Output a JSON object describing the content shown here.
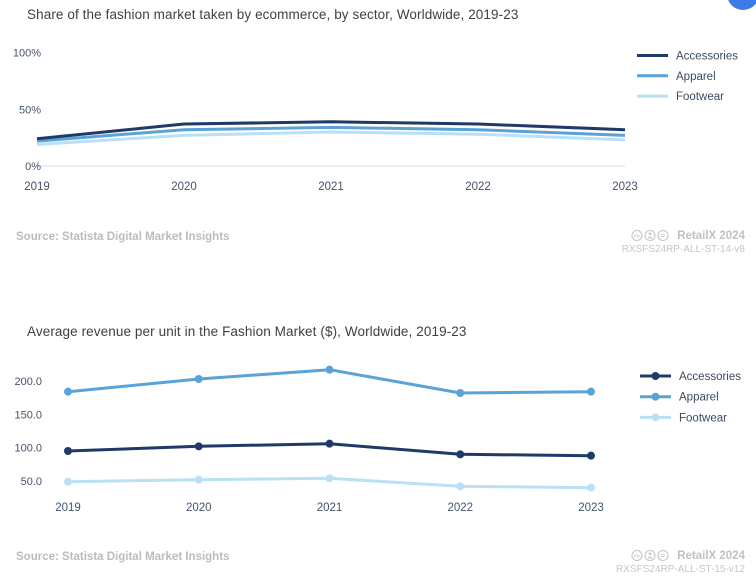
{
  "page": {
    "background": "#ffffff",
    "floating_button_color": "#3b7be6",
    "axis_label_color": "#44546a",
    "legend_text_color": "#3c4a61",
    "gridline_color": "#e9edf6"
  },
  "chart_data": [
    {
      "type": "line",
      "title": "Share of the fashion market taken by ecommerce, by sector, Worldwide, 2019-23",
      "categories": [
        "2019",
        "2020",
        "2021",
        "2022",
        "2023"
      ],
      "series": [
        {
          "name": "Accessories",
          "color": "#1e3a66",
          "values": [
            24,
            37,
            39,
            37,
            32
          ]
        },
        {
          "name": "Apparel",
          "color": "#5aa3d8",
          "values": [
            22,
            32,
            34,
            32,
            27
          ]
        },
        {
          "name": "Footwear",
          "color": "#b9e0f6",
          "values": [
            19,
            27,
            30,
            28,
            23
          ]
        }
      ],
      "unit": "%",
      "ylim": [
        0,
        100
      ],
      "yticks": [
        "100%",
        "50%",
        "0%"
      ],
      "grid": "horizontal line at 0% only",
      "markers": false,
      "legend_position": "right",
      "source": "Source: Statista Digital Market Insights",
      "brand": "RetailX 2024",
      "code": "RXSFS24RP-ALL-ST-14-v8",
      "license_icons": "cc-by-nd"
    },
    {
      "type": "line",
      "title": "Average revenue per unit in the Fashion Market ($), Worldwide, 2019-23",
      "categories": [
        "2019",
        "2020",
        "2021",
        "2022",
        "2023"
      ],
      "series": [
        {
          "name": "Accessories",
          "color": "#1e3a66",
          "values": [
            95,
            102,
            106,
            90,
            88
          ]
        },
        {
          "name": "Apparel",
          "color": "#5aa3d8",
          "values": [
            184,
            203,
            217,
            182,
            184
          ]
        },
        {
          "name": "Footwear",
          "color": "#b9e0f6",
          "values": [
            49,
            52,
            54,
            42,
            40
          ]
        }
      ],
      "unit": "$",
      "ylim": [
        30,
        230
      ],
      "yticks": [
        "200.0",
        "150.0",
        "100.0",
        "50.0"
      ],
      "grid": "none",
      "markers": true,
      "legend_position": "right",
      "source": "Source: Statista Digital Market Insights",
      "brand": "RetailX 2024",
      "code": "RXSFS24RP-ALL-ST-15-v12",
      "license_icons": "cc-by-nd"
    }
  ]
}
